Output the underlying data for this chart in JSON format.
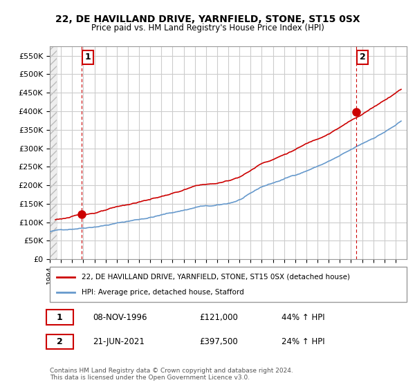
{
  "title": "22, DE HAVILLAND DRIVE, YARNFIELD, STONE, ST15 0SX",
  "subtitle": "Price paid vs. HM Land Registry's House Price Index (HPI)",
  "legend_line1": "22, DE HAVILLAND DRIVE, YARNFIELD, STONE, ST15 0SX (detached house)",
  "legend_line2": "HPI: Average price, detached house, Stafford",
  "footer": "Contains HM Land Registry data © Crown copyright and database right 2024.\nThis data is licensed under the Open Government Licence v3.0.",
  "point1_label": "1",
  "point1_date": "08-NOV-1996",
  "point1_price": "£121,000",
  "point1_hpi": "44% ↑ HPI",
  "point2_label": "2",
  "point2_date": "21-JUN-2021",
  "point2_price": "£397,500",
  "point2_hpi": "24% ↑ HPI",
  "ylim": [
    0,
    575000
  ],
  "xlim_start": 1994.0,
  "xlim_end": 2026.0,
  "hpi_color": "#6699cc",
  "price_color": "#cc0000",
  "point_color": "#cc0000",
  "grid_color": "#cccccc",
  "hatch_color": "#dddddd",
  "background_color": "#ffffff",
  "point1_x": 1996.86,
  "point1_y": 121000,
  "point2_x": 2021.47,
  "point2_y": 397500,
  "vline1_x": 1996.86,
  "vline2_x": 2021.47
}
